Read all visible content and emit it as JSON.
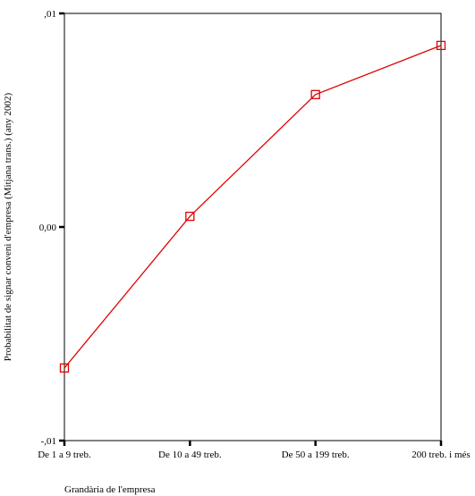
{
  "chart_data": {
    "type": "line",
    "categories": [
      "De 1 a 9 treb.",
      "De 10 a 49 treb.",
      "De 50 a 199 treb.",
      "200 treb. i més"
    ],
    "values": [
      -0.0066,
      0.0005,
      0.0062,
      0.0085
    ],
    "title": "",
    "xlabel": "Grandària de l'empresa",
    "ylabel": "Probabilitat de signar conveni d'empresa (Mitjana trans.) (any 2002)",
    "ylim": [
      -0.01,
      0.01
    ],
    "yticks": [
      -0.01,
      0,
      0.01
    ],
    "ytick_labels": [
      "-,01",
      "0,00",
      ",01"
    ],
    "grid": false,
    "line_color": "#e00000",
    "marker": "square"
  }
}
